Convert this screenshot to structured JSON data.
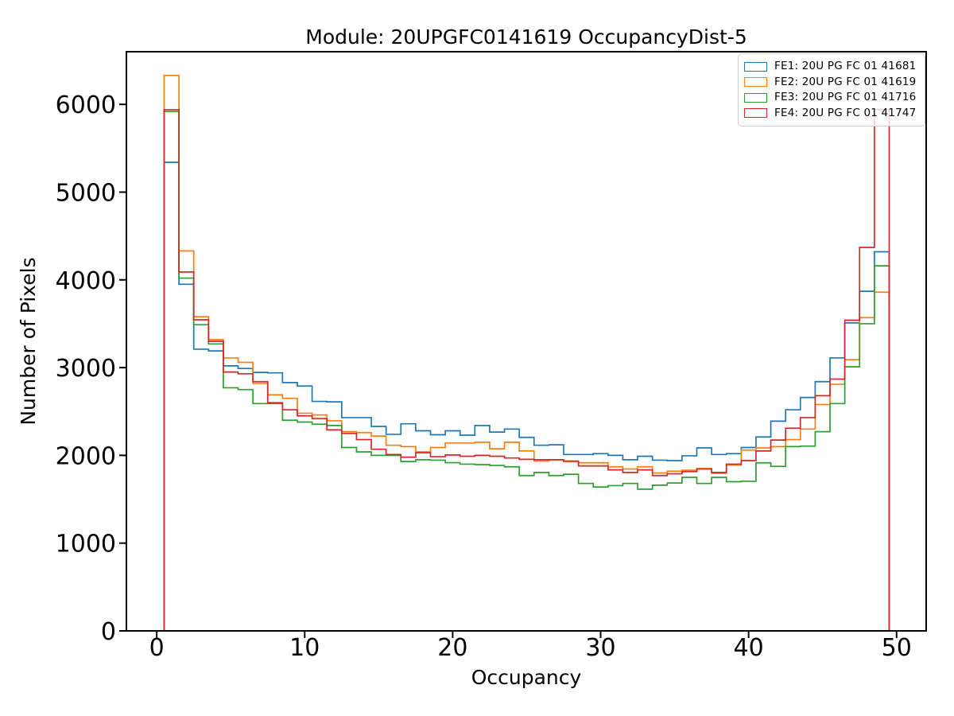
{
  "figure": {
    "title": "Module: 20UPGFC0141619 OccupancyDist-5",
    "xlabel": "Occupancy",
    "ylabel": "Number of Pixels"
  },
  "legend": {
    "position": "upper right",
    "items": [
      {
        "label": "FE1: 20U PG FC 01 41681",
        "color": "#1f77b4"
      },
      {
        "label": "FE2: 20U PG FC 01 41619",
        "color": "#ff7f0e"
      },
      {
        "label": "FE3: 20U PG FC 01 41716",
        "color": "#2ca02c"
      },
      {
        "label": "FE4: 20U PG FC 01 41747",
        "color": "#d62728"
      }
    ]
  },
  "chart_data": {
    "type": "step-histogram",
    "title": "Module: 20UPGFC0141619 OccupancyDist-5",
    "xlabel": "Occupancy",
    "ylabel": "Number of Pixels",
    "grid": false,
    "legend_position": "upper right",
    "bin_start": 0.5,
    "bin_width": 1,
    "n_bins": 49,
    "xlim": [
      -2.05,
      52.0
    ],
    "ylim": [
      0,
      6600
    ],
    "xticks": [
      0,
      10,
      20,
      30,
      40,
      50
    ],
    "yticks": [
      0,
      1000,
      2000,
      3000,
      4000,
      5000,
      6000
    ],
    "series": [
      {
        "name": "FE1: 20U PG FC 01 41681",
        "color": "#1f77b4",
        "values": [
          5340,
          3950,
          3210,
          3190,
          3020,
          2990,
          2945,
          2940,
          2830,
          2790,
          2615,
          2610,
          2430,
          2430,
          2330,
          2240,
          2360,
          2280,
          2235,
          2280,
          2230,
          2340,
          2265,
          2300,
          2205,
          2115,
          2120,
          2010,
          2010,
          2020,
          2000,
          1950,
          1990,
          1945,
          1940,
          1995,
          2085,
          2010,
          2020,
          2090,
          2210,
          2390,
          2520,
          2660,
          2840,
          3110,
          3510,
          3870,
          4320
        ]
      },
      {
        "name": "FE2: 20U PG FC 01 41619",
        "color": "#ff7f0e",
        "values": [
          6330,
          4330,
          3580,
          3320,
          3110,
          3060,
          2820,
          2690,
          2650,
          2480,
          2460,
          2395,
          2270,
          2260,
          2220,
          2115,
          2100,
          2040,
          2090,
          2140,
          2140,
          2150,
          2075,
          2150,
          2050,
          1935,
          1950,
          1930,
          1915,
          1915,
          1870,
          1845,
          1870,
          1800,
          1820,
          1830,
          1850,
          1795,
          1890,
          2060,
          2085,
          2100,
          2180,
          2300,
          2580,
          2810,
          3090,
          3570,
          3860
        ]
      },
      {
        "name": "FE3: 20U PG FC 01 41716",
        "color": "#2ca02c",
        "values": [
          5920,
          4020,
          3490,
          3270,
          2770,
          2750,
          2590,
          2590,
          2400,
          2380,
          2355,
          2340,
          2090,
          2040,
          2000,
          2000,
          1930,
          1950,
          1945,
          1917,
          1900,
          1895,
          1885,
          1870,
          1770,
          1805,
          1770,
          1785,
          1680,
          1640,
          1655,
          1680,
          1615,
          1660,
          1685,
          1750,
          1680,
          1750,
          1700,
          1705,
          1915,
          1875,
          2100,
          2105,
          2270,
          2590,
          3010,
          3500,
          4160
        ]
      },
      {
        "name": "FE4: 20U PG FC 01 41747",
        "color": "#d62728",
        "values": [
          5940,
          4090,
          3545,
          3300,
          2950,
          2930,
          2840,
          2600,
          2520,
          2450,
          2420,
          2290,
          2250,
          2180,
          2070,
          2010,
          1980,
          2030,
          1985,
          2005,
          1990,
          2000,
          1990,
          1970,
          1955,
          1950,
          1950,
          1935,
          1880,
          1880,
          1835,
          1805,
          1835,
          1770,
          1790,
          1815,
          1845,
          1805,
          1900,
          1940,
          2050,
          2175,
          2310,
          2430,
          2680,
          2870,
          3540,
          4370,
          5940
        ]
      }
    ]
  }
}
